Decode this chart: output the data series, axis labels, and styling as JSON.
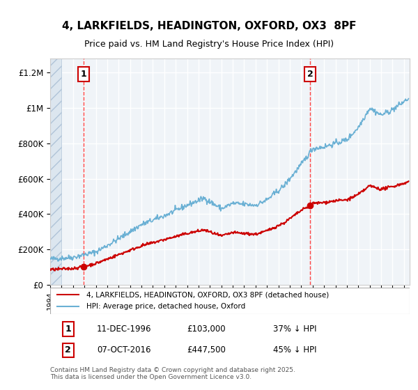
{
  "title_line1": "4, LARKFIELDS, HEADINGTON, OXFORD, OX3  8PF",
  "title_line2": "Price paid vs. HM Land Registry's House Price Index (HPI)",
  "ylabel_ticks": [
    "£0",
    "£200K",
    "£400K",
    "£600K",
    "£800K",
    "£1M",
    "£1.2M"
  ],
  "ytick_values": [
    0,
    200000,
    400000,
    600000,
    800000,
    1000000,
    1200000
  ],
  "ylim": [
    0,
    1280000
  ],
  "xlim_start": 1994.0,
  "xlim_end": 2025.5,
  "hpi_color": "#6ab0d4",
  "price_color": "#cc0000",
  "vline_color": "#ff4444",
  "vline_style": "dashed",
  "marker1_year": 1996.94,
  "marker1_price": 103000,
  "marker1_label": "1",
  "marker2_year": 2016.77,
  "marker2_price": 447500,
  "marker2_label": "2",
  "legend_entry1": "4, LARKFIELDS, HEADINGTON, OXFORD, OX3 8PF (detached house)",
  "legend_entry2": "HPI: Average price, detached house, Oxford",
  "annotation1_box": "1",
  "annotation1_date": "11-DEC-1996",
  "annotation1_price": "£103,000",
  "annotation1_hpi": "37% ↓ HPI",
  "annotation2_box": "2",
  "annotation2_date": "07-OCT-2016",
  "annotation2_price": "£447,500",
  "annotation2_hpi": "45% ↓ HPI",
  "footnote": "Contains HM Land Registry data © Crown copyright and database right 2025.\nThis data is licensed under the Open Government Licence v3.0.",
  "bg_color": "#ffffff",
  "plot_bg_color": "#f0f4f8",
  "grid_color": "#ffffff",
  "hatch_color": "#d0dce8"
}
